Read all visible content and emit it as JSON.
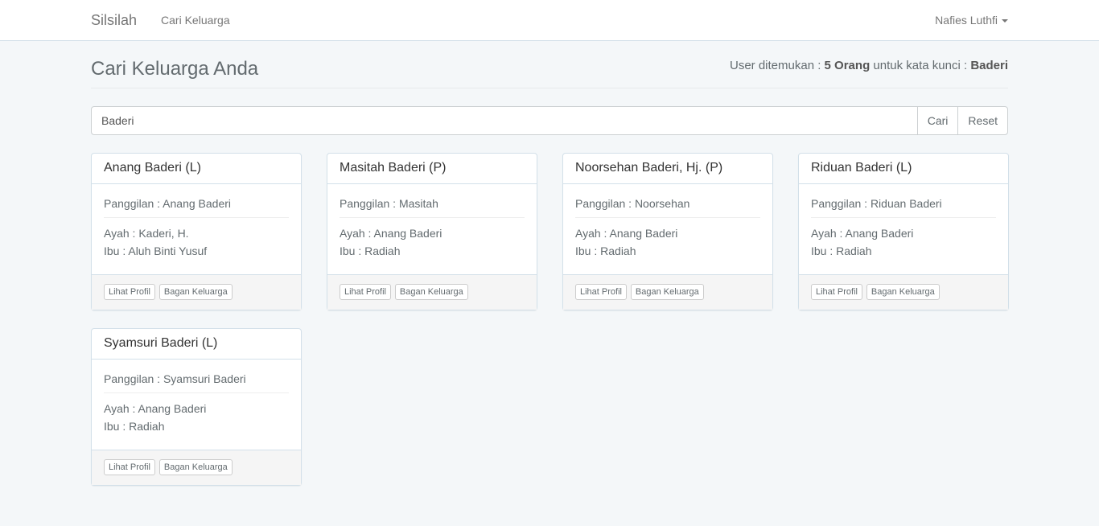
{
  "nav": {
    "brand": "Silsilah",
    "link": "Cari Keluarga",
    "user": "Nafies Luthfi"
  },
  "page": {
    "title": "Cari Keluarga Anda",
    "summary_prefix": "User ditemukan : ",
    "count": "5 Orang",
    "summary_mid": " untuk kata kunci : ",
    "keyword": "Baderi"
  },
  "search": {
    "value": "Baderi",
    "search_label": "Cari",
    "reset_label": "Reset"
  },
  "actions": {
    "profile": "Lihat Profil",
    "tree": "Bagan Keluarga"
  },
  "people": [
    {
      "name": "Anang Baderi (L)",
      "nickname": "Panggilan : Anang Baderi",
      "father": "Ayah : Kaderi, H.",
      "mother": "Ibu : Aluh Binti Yusuf"
    },
    {
      "name": "Masitah Baderi (P)",
      "nickname": "Panggilan : Masitah",
      "father": "Ayah : Anang Baderi",
      "mother": "Ibu : Radiah"
    },
    {
      "name": "Noorsehan Baderi, Hj. (P)",
      "nickname": "Panggilan : Noorsehan",
      "father": "Ayah : Anang Baderi",
      "mother": "Ibu : Radiah"
    },
    {
      "name": "Riduan Baderi (L)",
      "nickname": "Panggilan : Riduan Baderi",
      "father": "Ayah : Anang Baderi",
      "mother": "Ibu : Radiah"
    },
    {
      "name": "Syamsuri Baderi (L)",
      "nickname": "Panggilan : Syamsuri Baderi",
      "father": "Ayah : Anang Baderi",
      "mother": "Ibu : Radiah"
    }
  ]
}
